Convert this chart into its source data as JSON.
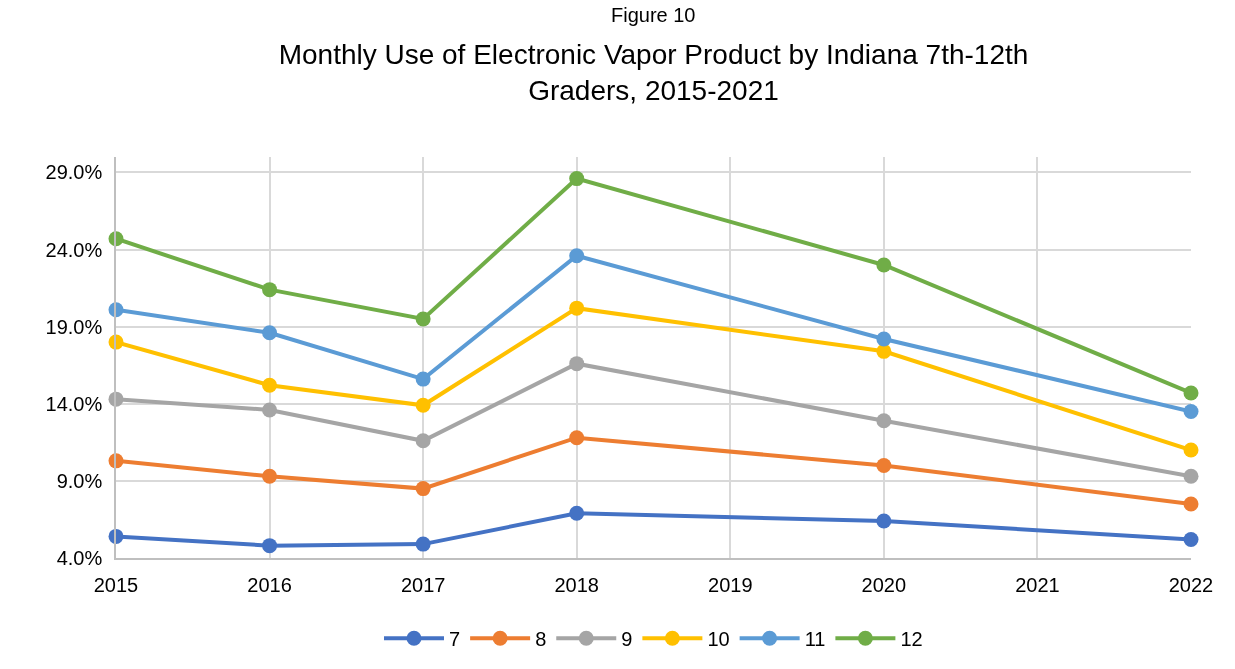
{
  "chart_data": {
    "type": "line",
    "title": "Monthly Use of Electronic Vapor Product by Indiana 7th-12th Graders, 2015-2021",
    "annotations": [
      "Figure 10"
    ],
    "x": [
      2015,
      2016,
      2017,
      2018,
      2020,
      2022
    ],
    "xlim": [
      2015,
      2022
    ],
    "xticks": [
      2015,
      2016,
      2017,
      2018,
      2019,
      2020,
      2021,
      2022
    ],
    "ylim": [
      4,
      30
    ],
    "yticks": [
      {
        "value": 4,
        "label": "4.0%"
      },
      {
        "value": 9,
        "label": "9.0%"
      },
      {
        "value": 14,
        "label": "14.0%"
      },
      {
        "value": 19,
        "label": "19.0%"
      },
      {
        "value": 24,
        "label": "24.0%"
      },
      {
        "value": 29,
        "label": "29.0%"
      }
    ],
    "grid": true,
    "legend": "bottom",
    "marker": "circle",
    "line_style": "solid",
    "series": [
      {
        "name": "7",
        "color": "#4472c4",
        "values": [
          5.4,
          4.8,
          4.9,
          6.9,
          6.4,
          5.2
        ]
      },
      {
        "name": "8",
        "color": "#ed7d31",
        "values": [
          10.3,
          9.3,
          8.5,
          11.8,
          10.0,
          7.5
        ]
      },
      {
        "name": "9",
        "color": "#a5a5a5",
        "values": [
          14.3,
          13.6,
          11.6,
          16.6,
          12.9,
          9.3
        ]
      },
      {
        "name": "10",
        "color": "#ffc000",
        "values": [
          18.0,
          15.2,
          13.9,
          20.2,
          17.4,
          11.0
        ]
      },
      {
        "name": "11",
        "color": "#5b9bd5",
        "values": [
          20.1,
          18.6,
          15.6,
          23.6,
          18.2,
          13.5
        ]
      },
      {
        "name": "12",
        "color": "#70ad47",
        "values": [
          24.7,
          21.4,
          19.5,
          28.6,
          23.0,
          14.7
        ]
      }
    ]
  }
}
